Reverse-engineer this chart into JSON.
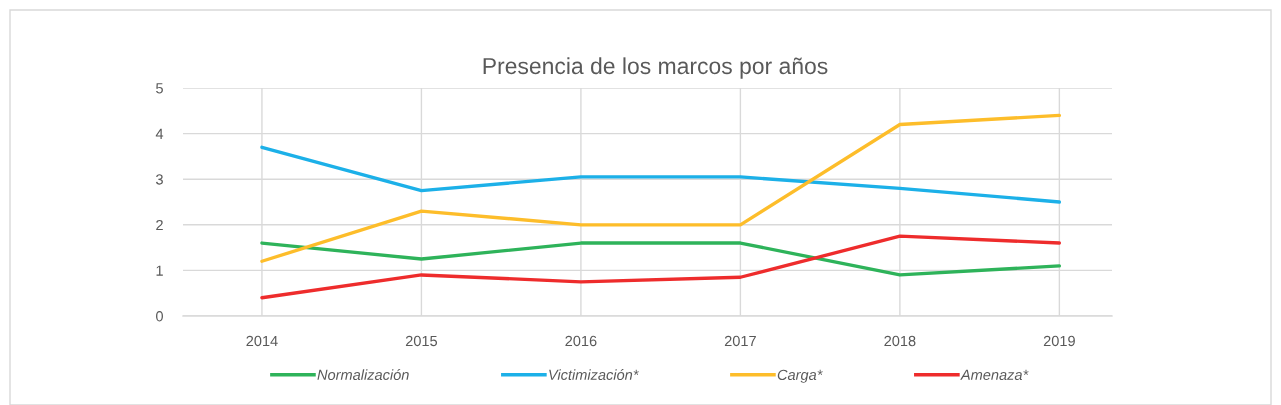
{
  "chart_data": {
    "type": "line",
    "title": "Presencia de los marcos por años",
    "categories": [
      "2014",
      "2015",
      "2016",
      "2017",
      "2018",
      "2019"
    ],
    "series": [
      {
        "name": "Normalización",
        "color": "#2eb35a",
        "values": [
          1.6,
          1.25,
          1.6,
          1.6,
          0.9,
          1.1
        ]
      },
      {
        "name": "Victimización*",
        "color": "#1cb0e8",
        "values": [
          3.7,
          2.75,
          3.05,
          3.05,
          2.8,
          2.5
        ]
      },
      {
        "name": "Carga*",
        "color": "#fdbd2a",
        "values": [
          1.2,
          2.3,
          2.0,
          2.0,
          4.2,
          4.4
        ]
      },
      {
        "name": "Amenaza*",
        "color": "#ee2c2c",
        "values": [
          0.4,
          0.9,
          0.75,
          0.85,
          1.75,
          1.6
        ]
      }
    ],
    "ylim": [
      0,
      5
    ],
    "yticks": [
      0,
      1,
      2,
      3,
      4,
      5
    ],
    "grid": true,
    "legend": "bottom",
    "line_style": "solid"
  }
}
